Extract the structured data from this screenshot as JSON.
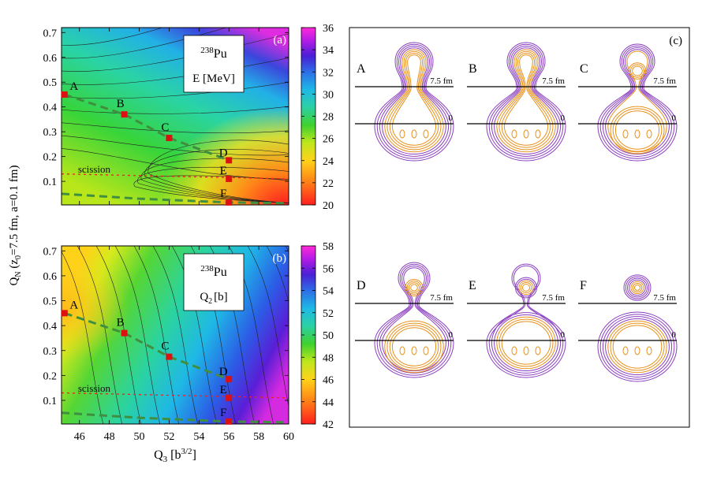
{
  "chart_data": [
    {
      "panel": "(a)",
      "type": "heatmap",
      "nucleus_mass": "238",
      "nucleus_symbol": "Pu",
      "quantity": "E [MeV]",
      "xlim": [
        44.8,
        60
      ],
      "ylim": [
        0.005,
        0.72
      ],
      "yticks": [
        "0.1",
        "0.2",
        "0.3",
        "0.4",
        "0.5",
        "0.6",
        "0.7"
      ],
      "colorbar": {
        "min": 20,
        "max": 36,
        "ticks": [
          "20",
          "22",
          "24",
          "26",
          "28",
          "30",
          "32",
          "34",
          "36"
        ]
      },
      "points": [
        {
          "label": "A",
          "x": 45,
          "y": 0.45
        },
        {
          "label": "B",
          "x": 49,
          "y": 0.37
        },
        {
          "label": "C",
          "x": 52,
          "y": 0.275
        },
        {
          "label": "D",
          "x": 56,
          "y": 0.185
        },
        {
          "label": "E",
          "x": 56,
          "y": 0.11
        },
        {
          "label": "F",
          "x": 56,
          "y": 0.015
        }
      ],
      "scission_label": "scission",
      "scission_line": [
        [
          44.8,
          0.13
        ],
        [
          60,
          0.11
        ]
      ],
      "path_fission": [
        [
          45,
          0.45
        ],
        [
          49,
          0.37
        ],
        [
          52,
          0.275
        ],
        [
          56,
          0.185
        ]
      ],
      "path_fusion": [
        [
          44.8,
          0.05
        ],
        [
          50,
          0.03
        ],
        [
          56,
          0.015
        ],
        [
          60,
          0.012
        ]
      ]
    },
    {
      "panel": "(b)",
      "type": "heatmap",
      "nucleus_mass": "238",
      "nucleus_symbol": "Pu",
      "quantity_main": "Q",
      "quantity_sub": "2",
      "quantity_unit": "[b]",
      "xlim": [
        44.8,
        60
      ],
      "ylim": [
        0.005,
        0.72
      ],
      "xticks": [
        "46",
        "48",
        "50",
        "52",
        "54",
        "56",
        "58",
        "60"
      ],
      "yticks": [
        "0.1",
        "0.2",
        "0.3",
        "0.4",
        "0.5",
        "0.6",
        "0.7"
      ],
      "colorbar": {
        "min": 42,
        "max": 58,
        "ticks": [
          "42",
          "44",
          "46",
          "48",
          "50",
          "52",
          "54",
          "56",
          "58"
        ]
      },
      "points": [
        {
          "label": "A",
          "x": 45,
          "y": 0.45
        },
        {
          "label": "B",
          "x": 49,
          "y": 0.37
        },
        {
          "label": "C",
          "x": 52,
          "y": 0.275
        },
        {
          "label": "D",
          "x": 56,
          "y": 0.185
        },
        {
          "label": "E",
          "x": 56,
          "y": 0.11
        },
        {
          "label": "F",
          "x": 56,
          "y": 0.015
        }
      ],
      "scission_label": "scission",
      "scission_line": [
        [
          44.8,
          0.13
        ],
        [
          60,
          0.11
        ]
      ],
      "path_fission": [
        [
          45,
          0.45
        ],
        [
          49,
          0.37
        ],
        [
          52,
          0.275
        ],
        [
          56,
          0.185
        ]
      ],
      "path_fusion": [
        [
          44.8,
          0.05
        ],
        [
          50,
          0.03
        ],
        [
          56,
          0.015
        ],
        [
          60,
          0.012
        ]
      ]
    }
  ],
  "axes": {
    "xlabel_main": "Q",
    "xlabel_sub": "3",
    "xlabel_unit_pre": " [b",
    "xlabel_unit_sup": "3/2",
    "xlabel_unit_post": "]",
    "ylabel_main": "Q",
    "ylabel_sub": "N",
    "ylabel_rest1": " (z",
    "ylabel_sub0": "0",
    "ylabel_rest2": "=7.5 fm, a=0.1 fm)"
  },
  "shapes": {
    "panel_label": "(c)",
    "line_upper_label": "7.5 fm",
    "line_lower_label": "0",
    "items": [
      {
        "label": "A"
      },
      {
        "label": "B"
      },
      {
        "label": "C"
      },
      {
        "label": "D"
      },
      {
        "label": "E"
      },
      {
        "label": "F"
      }
    ]
  },
  "colors": {
    "marker": "#dd1111",
    "path": "#3f8f3f",
    "scission": "#ee2222",
    "contour_outer": "#8a3fc0",
    "contour_inner": "#e8901a"
  }
}
